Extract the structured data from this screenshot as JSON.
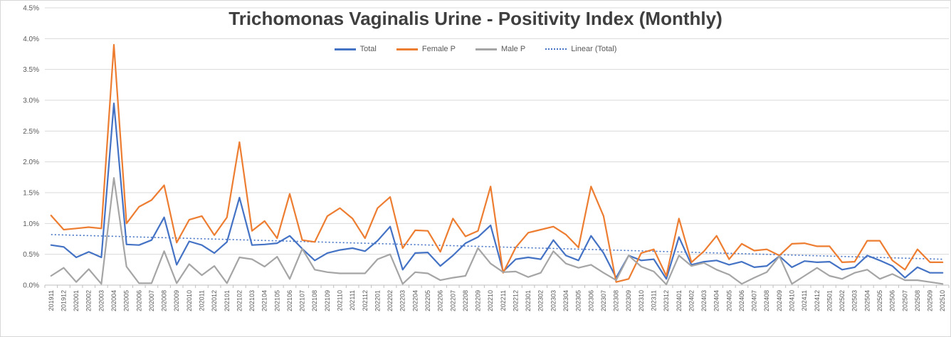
{
  "chart_data": {
    "type": "line",
    "title": "Trichomonas Vaginalis Urine - Positivity Index (Monthly)",
    "legend_position": "top",
    "grid": true,
    "y_axis": {
      "min": 0,
      "max": 4.5,
      "step": 0.5,
      "format": "percent",
      "ticks": [
        "0.0%",
        "0.5%",
        "1.0%",
        "1.5%",
        "2.0%",
        "2.5%",
        "3.0%",
        "3.5%",
        "4.0%",
        "4.5%"
      ]
    },
    "categories": [
      "201911",
      "201912",
      "202001",
      "202002",
      "202003",
      "202004",
      "202005",
      "202006",
      "202007",
      "202008",
      "202009",
      "202010",
      "202011",
      "202012",
      "202101",
      "202102",
      "202103",
      "202104",
      "202105",
      "202106",
      "202107",
      "202108",
      "202109",
      "202110",
      "202111",
      "202112",
      "202201",
      "202202",
      "202203",
      "202204",
      "202205",
      "202206",
      "202207",
      "202208",
      "202209",
      "202210",
      "202211",
      "202212",
      "202301",
      "202302",
      "202303",
      "202304",
      "202305",
      "202306",
      "202307",
      "202308",
      "202309",
      "202310",
      "202311",
      "202312",
      "202401",
      "202402",
      "202403",
      "202404",
      "202405",
      "202406",
      "202407",
      "202408",
      "202409",
      "202410",
      "202411",
      "202412",
      "202501",
      "202502",
      "202503",
      "202504",
      "202505",
      "202506",
      "202507",
      "202508",
      "202509",
      "202510"
    ],
    "series": [
      {
        "name": "Total",
        "color": "#4472C4",
        "values": [
          0.65,
          0.62,
          0.45,
          0.54,
          0.45,
          2.95,
          0.66,
          0.65,
          0.73,
          1.1,
          0.33,
          0.71,
          0.65,
          0.52,
          0.7,
          1.42,
          0.65,
          0.66,
          0.68,
          0.8,
          0.59,
          0.4,
          0.52,
          0.57,
          0.6,
          0.55,
          0.72,
          0.95,
          0.25,
          0.52,
          0.53,
          0.31,
          0.48,
          0.68,
          0.78,
          0.97,
          0.22,
          0.42,
          0.45,
          0.42,
          0.73,
          0.48,
          0.4,
          0.8,
          0.52,
          0.12,
          0.48,
          0.4,
          0.42,
          0.1,
          0.78,
          0.33,
          0.38,
          0.4,
          0.33,
          0.38,
          0.29,
          0.31,
          0.47,
          0.29,
          0.39,
          0.37,
          0.38,
          0.25,
          0.29,
          0.48,
          0.4,
          0.31,
          0.12,
          0.29,
          0.2,
          0.2
        ]
      },
      {
        "name": "Female P",
        "color": "#ED7D31",
        "values": [
          1.13,
          0.9,
          0.92,
          0.94,
          0.92,
          3.9,
          1.0,
          1.27,
          1.38,
          1.62,
          0.69,
          1.06,
          1.12,
          0.81,
          1.1,
          2.32,
          0.88,
          1.04,
          0.76,
          1.48,
          0.73,
          0.7,
          1.12,
          1.25,
          1.08,
          0.76,
          1.25,
          1.43,
          0.6,
          0.89,
          0.88,
          0.54,
          1.08,
          0.79,
          0.88,
          1.6,
          0.2,
          0.61,
          0.85,
          0.9,
          0.95,
          0.82,
          0.61,
          1.6,
          1.12,
          0.05,
          0.1,
          0.52,
          0.58,
          0.15,
          1.08,
          0.37,
          0.55,
          0.8,
          0.42,
          0.67,
          0.56,
          0.58,
          0.48,
          0.67,
          0.68,
          0.63,
          0.63,
          0.37,
          0.38,
          0.72,
          0.72,
          0.4,
          0.25,
          0.58,
          0.37,
          0.37
        ]
      },
      {
        "name": "Male P",
        "color": "#A5A5A5",
        "values": [
          0.15,
          0.28,
          0.05,
          0.26,
          0.02,
          1.74,
          0.3,
          0.03,
          0.03,
          0.55,
          0.03,
          0.34,
          0.16,
          0.31,
          0.03,
          0.45,
          0.42,
          0.3,
          0.46,
          0.1,
          0.59,
          0.25,
          0.21,
          0.19,
          0.19,
          0.19,
          0.42,
          0.5,
          0.02,
          0.21,
          0.19,
          0.08,
          0.12,
          0.15,
          0.6,
          0.35,
          0.21,
          0.22,
          0.13,
          0.2,
          0.55,
          0.35,
          0.28,
          0.33,
          0.2,
          0.08,
          0.48,
          0.3,
          0.22,
          0.01,
          0.48,
          0.31,
          0.36,
          0.25,
          0.17,
          0.02,
          0.12,
          0.21,
          0.47,
          0.02,
          0.15,
          0.28,
          0.15,
          0.1,
          0.2,
          0.25,
          0.1,
          0.18,
          0.08,
          0.08,
          0.05,
          0.02
        ]
      }
    ],
    "trendline": {
      "name": "Linear (Total)",
      "color": "#4472C4",
      "style": "dotted",
      "start": 0.82,
      "end": 0.42
    }
  },
  "style_colors": {
    "gridline": "#D9D9D9",
    "axis_line": "#BFBFBF",
    "tick": "#BFBFBF",
    "title_text": "#3F3F3F",
    "label_text": "#595959"
  }
}
